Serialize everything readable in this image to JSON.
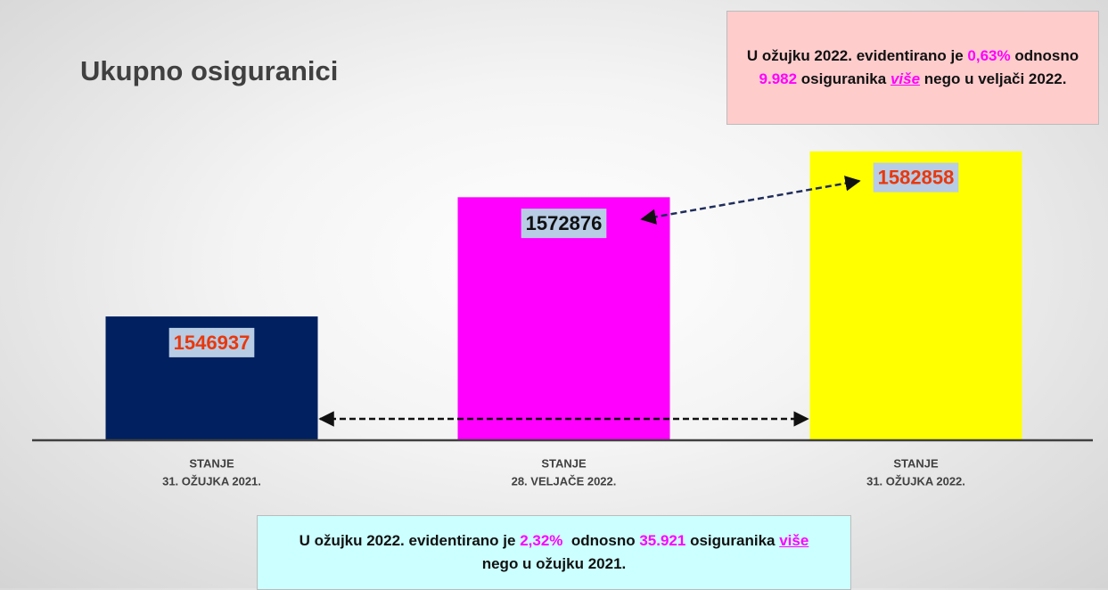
{
  "chart_data": {
    "type": "bar",
    "title": "Ukupno osiguranici",
    "categories": [
      [
        "STANJE",
        "31. OŽUJKA 2021."
      ],
      [
        "STANJE",
        "28. VELJAČE 2022."
      ],
      [
        "STANJE",
        "31. OŽUJKA 2022."
      ]
    ],
    "values": [
      1546937,
      1572876,
      1582858
    ],
    "colors": [
      "#002060",
      "#ff00ff",
      "#ffff00"
    ],
    "label_colors": [
      "#e8380d",
      "#111111",
      "#e8380d"
    ],
    "ylim": [
      1520000,
      1590000
    ],
    "annotations": [
      {
        "runs": [
          {
            "text": "U ožujku 2022. evidentirano je ",
            "color": "#111111"
          },
          {
            "text": "0,63%",
            "color": "#ff00ff"
          },
          {
            "text": " odnosno ",
            "color": "#111111"
          },
          {
            "text": "9.982",
            "color": "#ff00ff"
          },
          {
            "text": " osiguranika ",
            "color": "#111111"
          },
          {
            "text": "više",
            "color": "#ff00ff"
          },
          {
            "text": " nego u veljači 2022.",
            "color": "#111111"
          }
        ]
      },
      {
        "runs": [
          {
            "text": "U ožujku 2022. evidentirano je ",
            "color": "#111111"
          },
          {
            "text": "2,32%",
            "color": "#ff00ff"
          },
          {
            "text": "  odnosno ",
            "color": "#111111"
          },
          {
            "text": "35.921",
            "color": "#ff00ff"
          },
          {
            "text": " osiguranika ",
            "color": "#111111"
          },
          {
            "text": "više",
            "color": "#ff00ff"
          },
          {
            "text": " nego u ožujku 2021.",
            "color": "#111111"
          }
        ]
      }
    ]
  }
}
